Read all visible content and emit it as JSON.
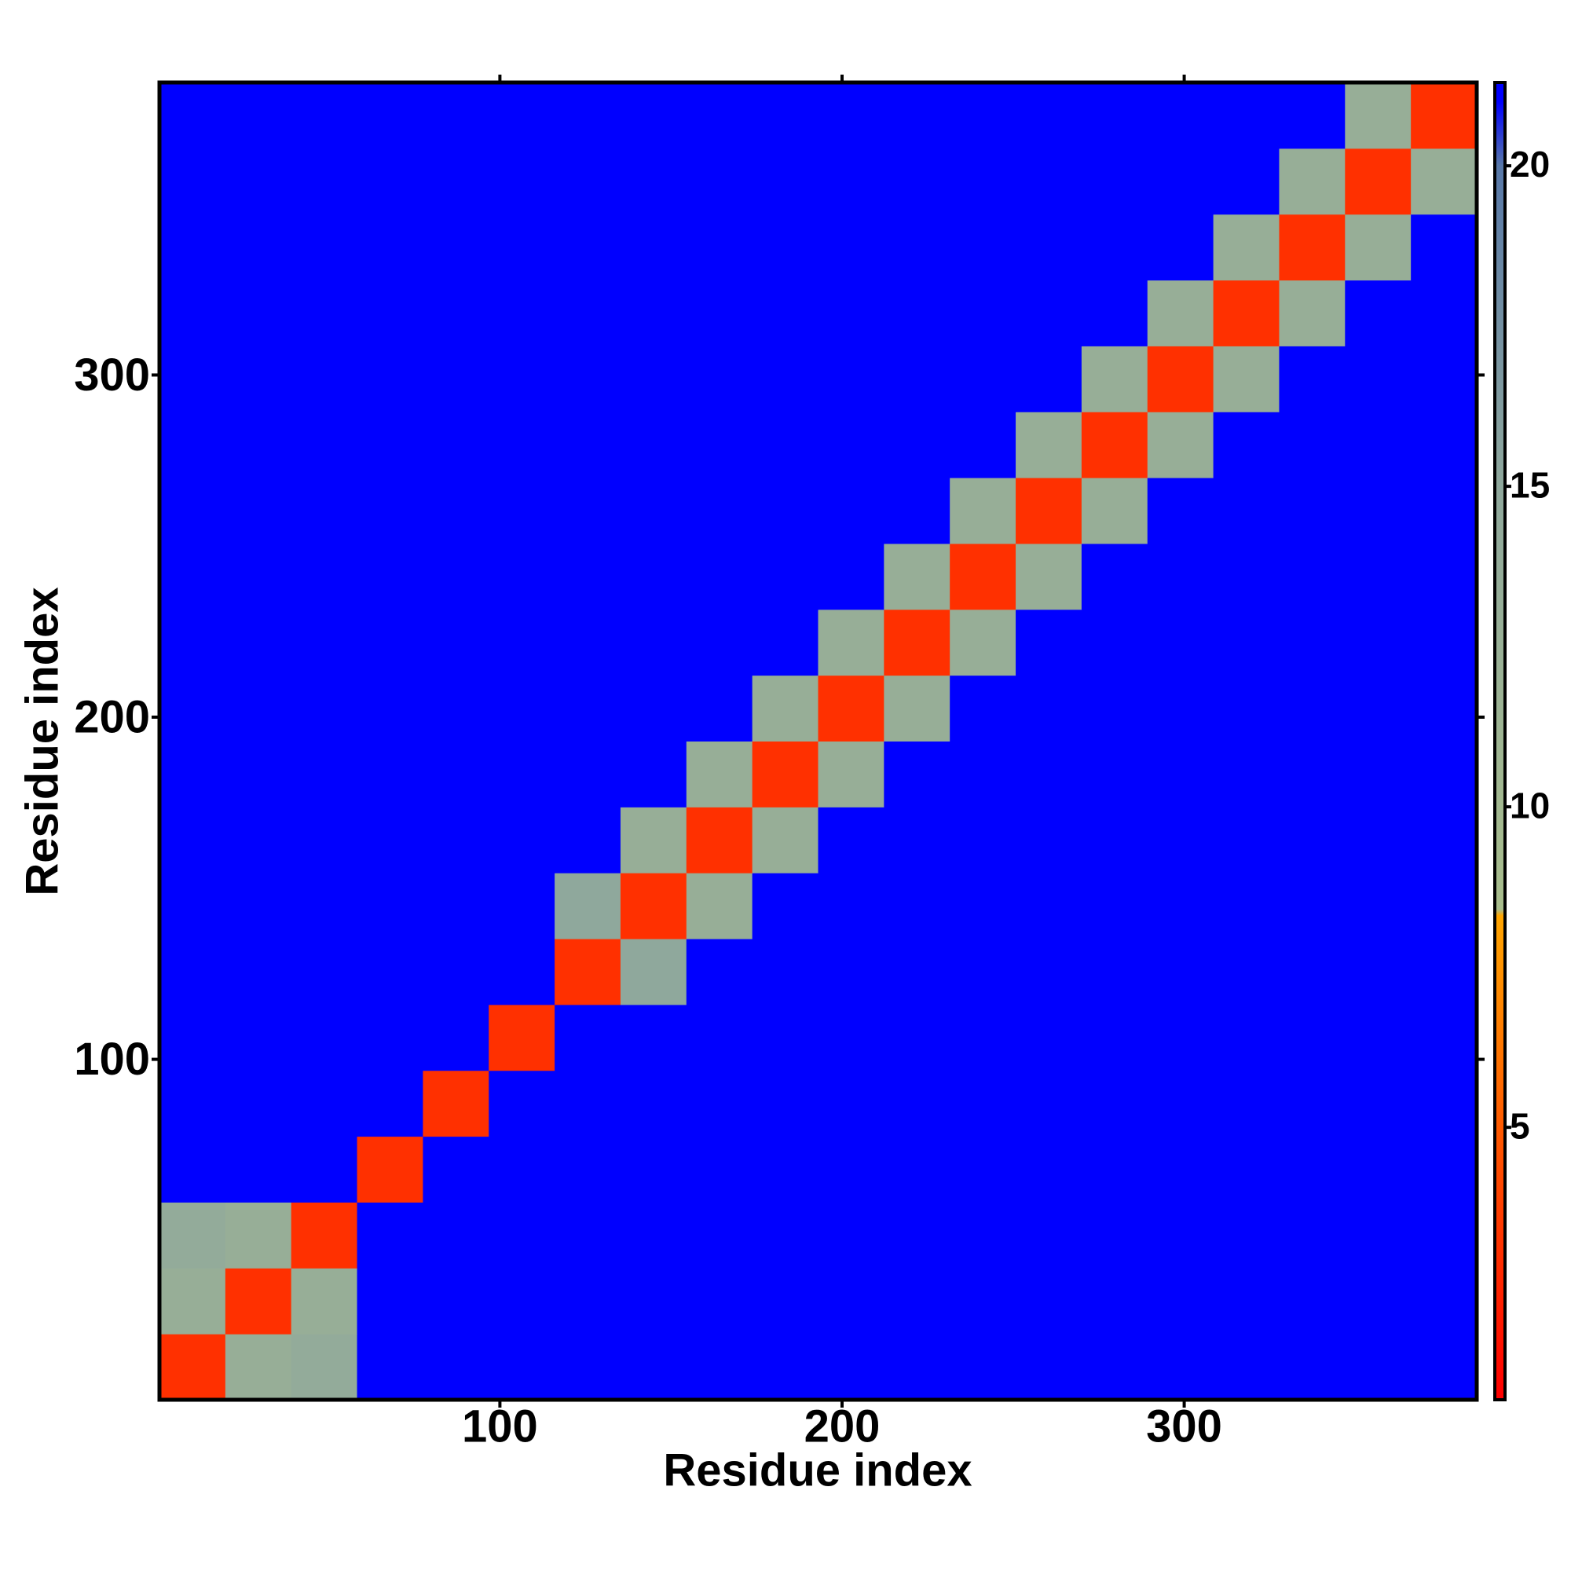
{
  "chart_data": {
    "type": "heatmap",
    "x_label": "Residue index",
    "y_label": "Residue index",
    "xlim": [
      0.5,
      385.5
    ],
    "ylim": [
      0.5,
      385.5
    ],
    "xticks": [
      100,
      200,
      300
    ],
    "yticks": [
      100,
      200,
      300
    ],
    "x_edges": [
      0.5,
      19.75,
      39,
      58.25,
      77.5,
      96.75,
      116,
      135.25,
      154.5,
      173.75,
      193,
      212.25,
      231.5,
      250.75,
      270,
      289.25,
      308.5,
      327.75,
      347,
      366.25,
      385.5
    ],
    "y_edges": [
      0.5,
      19.75,
      39,
      58.25,
      77.5,
      96.75,
      116,
      135.25,
      154.5,
      173.75,
      193,
      212.25,
      231.5,
      250.75,
      270,
      289.25,
      308.5,
      327.75,
      347,
      366.25,
      385.5
    ],
    "z": [
      [
        3,
        13,
        14,
        21,
        21,
        21,
        21,
        21,
        21,
        21,
        21,
        21,
        21,
        21,
        21,
        21,
        21,
        21,
        21,
        21
      ],
      [
        13,
        3,
        13,
        21,
        21,
        21,
        21,
        21,
        21,
        21,
        21,
        21,
        21,
        21,
        21,
        21,
        21,
        21,
        21,
        21
      ],
      [
        14,
        13,
        3,
        21,
        21,
        21,
        21,
        21,
        21,
        21,
        21,
        21,
        21,
        21,
        21,
        21,
        21,
        21,
        21,
        21
      ],
      [
        21,
        21,
        21,
        3,
        21,
        21,
        21,
        21,
        21,
        21,
        21,
        21,
        21,
        21,
        21,
        21,
        21,
        21,
        21,
        21
      ],
      [
        21,
        21,
        21,
        21,
        3,
        21,
        21,
        21,
        21,
        21,
        21,
        21,
        21,
        21,
        21,
        21,
        21,
        21,
        21,
        21
      ],
      [
        21,
        21,
        21,
        21,
        21,
        3,
        21,
        21,
        21,
        21,
        21,
        21,
        21,
        21,
        21,
        21,
        21,
        21,
        21,
        21
      ],
      [
        21,
        21,
        21,
        21,
        21,
        21,
        3,
        15,
        21,
        21,
        21,
        21,
        21,
        21,
        21,
        21,
        21,
        21,
        21,
        21
      ],
      [
        21,
        21,
        21,
        21,
        21,
        21,
        15,
        3,
        13,
        21,
        21,
        21,
        21,
        21,
        21,
        21,
        21,
        21,
        21,
        21
      ],
      [
        21,
        21,
        21,
        21,
        21,
        21,
        21,
        13,
        3,
        13,
        21,
        21,
        21,
        21,
        21,
        21,
        21,
        21,
        21,
        21
      ],
      [
        21,
        21,
        21,
        21,
        21,
        21,
        21,
        21,
        13,
        3,
        13,
        21,
        21,
        21,
        21,
        21,
        21,
        21,
        21,
        21
      ],
      [
        21,
        21,
        21,
        21,
        21,
        21,
        21,
        21,
        21,
        13,
        3,
        13,
        21,
        21,
        21,
        21,
        21,
        21,
        21,
        21
      ],
      [
        21,
        21,
        21,
        21,
        21,
        21,
        21,
        21,
        21,
        21,
        13,
        3,
        13,
        21,
        21,
        21,
        21,
        21,
        21,
        21
      ],
      [
        21,
        21,
        21,
        21,
        21,
        21,
        21,
        21,
        21,
        21,
        21,
        13,
        3,
        13,
        21,
        21,
        21,
        21,
        21,
        21
      ],
      [
        21,
        21,
        21,
        21,
        21,
        21,
        21,
        21,
        21,
        21,
        21,
        21,
        13,
        3,
        13,
        21,
        21,
        21,
        21,
        21
      ],
      [
        21,
        21,
        21,
        21,
        21,
        21,
        21,
        21,
        21,
        21,
        21,
        21,
        21,
        13,
        3,
        13,
        21,
        21,
        21,
        21
      ],
      [
        21,
        21,
        21,
        21,
        21,
        21,
        21,
        21,
        21,
        21,
        21,
        21,
        21,
        21,
        13,
        3,
        13,
        21,
        21,
        21
      ],
      [
        21,
        21,
        21,
        21,
        21,
        21,
        21,
        21,
        21,
        21,
        21,
        21,
        21,
        21,
        21,
        13,
        3,
        13,
        21,
        21
      ],
      [
        21,
        21,
        21,
        21,
        21,
        21,
        21,
        21,
        21,
        21,
        21,
        21,
        21,
        21,
        21,
        21,
        13,
        3,
        13,
        21
      ],
      [
        21,
        21,
        21,
        21,
        21,
        21,
        21,
        21,
        21,
        21,
        21,
        21,
        21,
        21,
        21,
        21,
        21,
        13,
        3,
        13
      ],
      [
        21,
        21,
        21,
        21,
        21,
        21,
        21,
        21,
        21,
        21,
        21,
        21,
        21,
        21,
        21,
        21,
        21,
        21,
        13,
        3
      ]
    ],
    "colorbar": {
      "clim": [
        0.75,
        21.3
      ],
      "ticks": [
        5,
        10,
        15,
        20
      ]
    },
    "colorscale": [
      [
        0.75,
        "#ff0000"
      ],
      [
        5,
        "#ff5a00"
      ],
      [
        8.3,
        "#ffa500"
      ],
      [
        8.4,
        "#a8bd8c"
      ],
      [
        15,
        "#8fa89c"
      ],
      [
        20,
        "#5878a8"
      ],
      [
        21,
        "#0000ff"
      ]
    ]
  }
}
